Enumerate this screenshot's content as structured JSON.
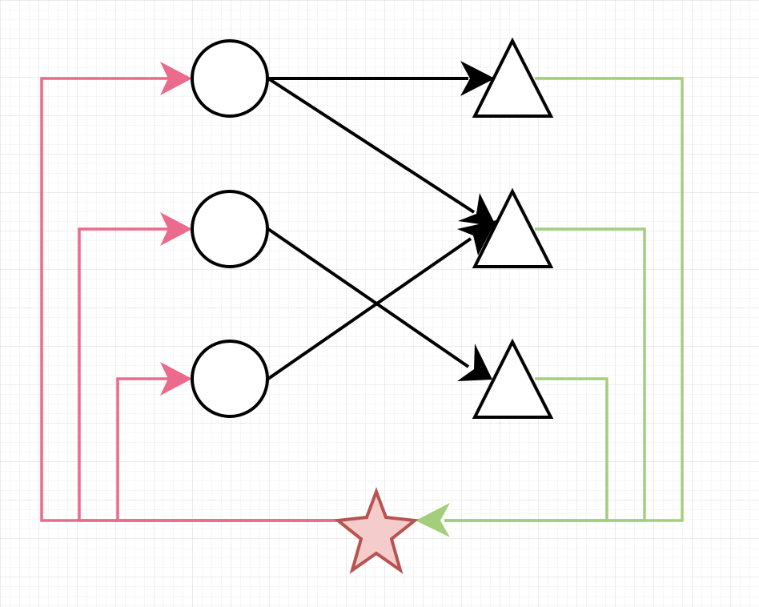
{
  "colors": {
    "background": "#ffffff",
    "grid_minor": "#eeeeee",
    "grid_major": "#d9d9d9",
    "node_stroke": "#000000",
    "node_fill": "#ffffff",
    "edge_black": "#000000",
    "edge_pink": "#ea6b8b",
    "edge_green": "#a3cf7d",
    "star_fill": "#f4cccc",
    "star_stroke": "#b85450"
  },
  "nodes": {
    "circles": [
      {
        "id": "circle-1",
        "shape": "circle"
      },
      {
        "id": "circle-2",
        "shape": "circle"
      },
      {
        "id": "circle-3",
        "shape": "circle"
      }
    ],
    "triangles": [
      {
        "id": "triangle-1",
        "shape": "triangle"
      },
      {
        "id": "triangle-2",
        "shape": "triangle"
      },
      {
        "id": "triangle-3",
        "shape": "triangle"
      }
    ],
    "star": {
      "id": "star",
      "shape": "star"
    }
  },
  "edges": [
    {
      "from": "circle-1",
      "to": "triangle-1",
      "color": "black"
    },
    {
      "from": "circle-1",
      "to": "triangle-2",
      "color": "black"
    },
    {
      "from": "circle-2",
      "to": "triangle-3",
      "color": "black"
    },
    {
      "from": "circle-3",
      "to": "triangle-2",
      "color": "black"
    },
    {
      "from": "triangle-1",
      "to": "star",
      "color": "green"
    },
    {
      "from": "triangle-2",
      "to": "star",
      "color": "green"
    },
    {
      "from": "triangle-3",
      "to": "star",
      "color": "green"
    },
    {
      "from": "star",
      "to": "circle-1",
      "color": "pink"
    },
    {
      "from": "star",
      "to": "circle-2",
      "color": "pink"
    },
    {
      "from": "star",
      "to": "circle-3",
      "color": "pink"
    }
  ]
}
